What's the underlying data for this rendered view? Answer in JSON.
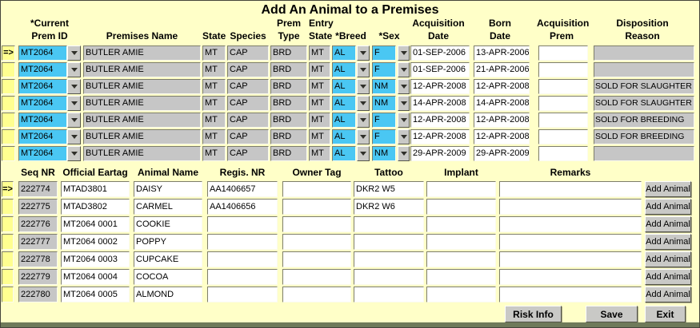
{
  "title": "Add An Animal to a Premises",
  "indicator": "=>",
  "colors": {
    "background": "#FFFFC8",
    "field_highlight": "#4AC7F3",
    "field_readonly": "#C6C6C6",
    "field_white": "#FFFFFF",
    "indicator_yellow": "#FFFF90",
    "button_face": "#C9C9C6",
    "frame_edge": "#44443A",
    "bottom_strip": "#6F7A5A",
    "text": "#000000"
  },
  "top_table": {
    "headers": [
      {
        "line1": "*Current",
        "line2": "Prem ID"
      },
      {
        "line1": "",
        "line2": "Premises Name"
      },
      {
        "line1": "",
        "line2": "State"
      },
      {
        "line1": "",
        "line2": "Species"
      },
      {
        "line1": "Prem",
        "line2": "Type"
      },
      {
        "line1": "Entry",
        "line2": "State"
      },
      {
        "line1": "",
        "line2": "*Breed"
      },
      {
        "line1": "",
        "line2": "*Sex"
      },
      {
        "line1": "Acquisition",
        "line2": "Date"
      },
      {
        "line1": "Born",
        "line2": "Date"
      },
      {
        "line1": "Acquisition",
        "line2": "Prem"
      },
      {
        "line1": "Disposition",
        "line2": "Reason"
      }
    ],
    "rows": [
      {
        "active": true,
        "prem_id": "MT2064",
        "premises_name": "BUTLER AMIE",
        "state": "MT",
        "species": "CAP",
        "prem_type": "BRD",
        "entry_state": "MT",
        "breed": "AL",
        "sex": "F",
        "acquisition_date": "01-SEP-2006",
        "born_date": "13-APR-2006",
        "acquisition_prem": "",
        "disposition_reason": ""
      },
      {
        "active": false,
        "prem_id": "MT2064",
        "premises_name": "BUTLER AMIE",
        "state": "MT",
        "species": "CAP",
        "prem_type": "BRD",
        "entry_state": "MT",
        "breed": "AL",
        "sex": "F",
        "acquisition_date": "01-SEP-2006",
        "born_date": "21-APR-2006",
        "acquisition_prem": "",
        "disposition_reason": ""
      },
      {
        "active": false,
        "prem_id": "MT2064",
        "premises_name": "BUTLER AMIE",
        "state": "MT",
        "species": "CAP",
        "prem_type": "BRD",
        "entry_state": "MT",
        "breed": "AL",
        "sex": "NM",
        "acquisition_date": "12-APR-2008",
        "born_date": "12-APR-2008",
        "acquisition_prem": "",
        "disposition_reason": "SOLD FOR SLAUGHTER"
      },
      {
        "active": false,
        "prem_id": "MT2064",
        "premises_name": "BUTLER AMIE",
        "state": "MT",
        "species": "CAP",
        "prem_type": "BRD",
        "entry_state": "MT",
        "breed": "AL",
        "sex": "NM",
        "acquisition_date": "14-APR-2008",
        "born_date": "14-APR-2008",
        "acquisition_prem": "",
        "disposition_reason": "SOLD FOR SLAUGHTER"
      },
      {
        "active": false,
        "prem_id": "MT2064",
        "premises_name": "BUTLER AMIE",
        "state": "MT",
        "species": "CAP",
        "prem_type": "BRD",
        "entry_state": "MT",
        "breed": "AL",
        "sex": "F",
        "acquisition_date": "12-APR-2008",
        "born_date": "12-APR-2008",
        "acquisition_prem": "",
        "disposition_reason": "SOLD FOR BREEDING"
      },
      {
        "active": false,
        "prem_id": "MT2064",
        "premises_name": "BUTLER AMIE",
        "state": "MT",
        "species": "CAP",
        "prem_type": "BRD",
        "entry_state": "MT",
        "breed": "AL",
        "sex": "F",
        "acquisition_date": "12-APR-2008",
        "born_date": "12-APR-2008",
        "acquisition_prem": "",
        "disposition_reason": "SOLD FOR BREEDING"
      },
      {
        "active": false,
        "prem_id": "MT2064",
        "premises_name": "BUTLER AMIE",
        "state": "MT",
        "species": "CAP",
        "prem_type": "BRD",
        "entry_state": "MT",
        "breed": "AL",
        "sex": "NM",
        "acquisition_date": "29-APR-2009",
        "born_date": "29-APR-2009",
        "acquisition_prem": "",
        "disposition_reason": ""
      }
    ]
  },
  "bottom_table": {
    "headers": [
      "Seq NR",
      "Official Eartag",
      "Animal Name",
      "Regis. NR",
      "Owner Tag",
      "Tattoo",
      "Implant",
      "Remarks"
    ],
    "add_button_label": "Add Animal",
    "rows": [
      {
        "active": true,
        "seq_nr": "222774",
        "official_eartag": "MTAD3801",
        "animal_name": "DAISY",
        "regis_nr": "AA1406657",
        "owner_tag": "",
        "tattoo": "DKR2 W5",
        "implant": "",
        "remarks": ""
      },
      {
        "active": false,
        "seq_nr": "222775",
        "official_eartag": "MTAD3802",
        "animal_name": "CARMEL",
        "regis_nr": "AA1406656",
        "owner_tag": "",
        "tattoo": "DKR2 W6",
        "implant": "",
        "remarks": ""
      },
      {
        "active": false,
        "seq_nr": "222776",
        "official_eartag": "MT2064 0001",
        "animal_name": "COOKIE",
        "regis_nr": "",
        "owner_tag": "",
        "tattoo": "",
        "implant": "",
        "remarks": ""
      },
      {
        "active": false,
        "seq_nr": "222777",
        "official_eartag": "MT2064 0002",
        "animal_name": "POPPY",
        "regis_nr": "",
        "owner_tag": "",
        "tattoo": "",
        "implant": "",
        "remarks": ""
      },
      {
        "active": false,
        "seq_nr": "222778",
        "official_eartag": "MT2064 0003",
        "animal_name": "CUPCAKE",
        "regis_nr": "",
        "owner_tag": "",
        "tattoo": "",
        "implant": "",
        "remarks": ""
      },
      {
        "active": false,
        "seq_nr": "222779",
        "official_eartag": "MT2064 0004",
        "animal_name": "COCOA",
        "regis_nr": "",
        "owner_tag": "",
        "tattoo": "",
        "implant": "",
        "remarks": ""
      },
      {
        "active": false,
        "seq_nr": "222780",
        "official_eartag": "MT2064 0005",
        "animal_name": "ALMOND",
        "regis_nr": "",
        "owner_tag": "",
        "tattoo": "",
        "implant": "",
        "remarks": ""
      }
    ]
  },
  "footer": {
    "risk_info_label": "Risk Info",
    "save_label": "Save",
    "exit_label": "Exit"
  }
}
